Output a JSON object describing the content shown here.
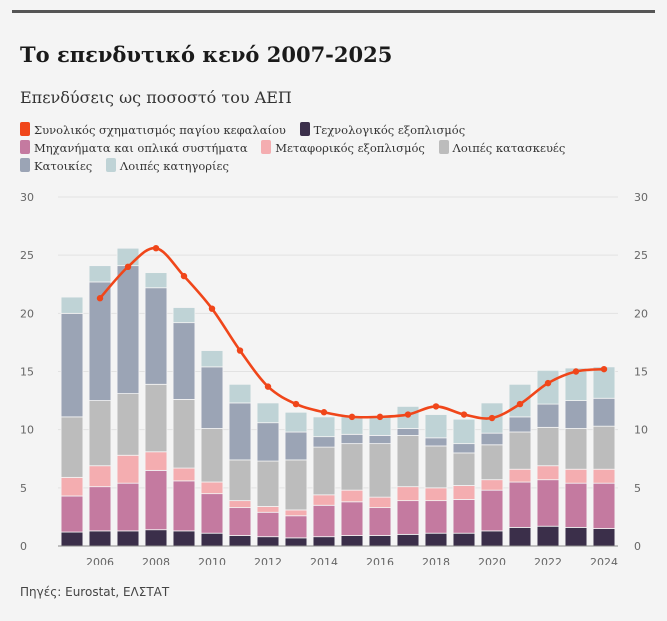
{
  "header": {
    "title": "Το επενδυτικό κενό 2007-2025",
    "subtitle": "Επενδύσεις ως ποσοστό του ΑΕΠ"
  },
  "legend": [
    {
      "label": "Συνολικός σχηματισμός παγίου κεφαλαίου",
      "color": "#f0461a"
    },
    {
      "label": "Τεχνολογικός εξοπλισμός",
      "color": "#3b2f4a"
    },
    {
      "label": "Μηχανήματα και οπλικά συστήματα",
      "color": "#c47aa0"
    },
    {
      "label": "Μεταφορικός εξοπλισμός",
      "color": "#f4adb0"
    },
    {
      "label": "Λοιπές κατασκευές",
      "color": "#bcbcbc"
    },
    {
      "label": "Κατοικίες",
      "color": "#9ba4b5"
    },
    {
      "label": "Λοιπές κατηγορίες",
      "color": "#bfd3d6"
    }
  ],
  "chart_data": {
    "type": "bar",
    "stacked": true,
    "title": "Το επενδυτικό κενό 2007-2025",
    "subtitle": "Επενδύσεις ως ποσοστό του ΑΕΠ",
    "x": [
      2005,
      2006,
      2007,
      2008,
      2009,
      2010,
      2011,
      2012,
      2013,
      2014,
      2015,
      2016,
      2017,
      2018,
      2019,
      2020,
      2021,
      2022,
      2023,
      2024
    ],
    "xticks": [
      2006,
      2008,
      2010,
      2012,
      2014,
      2016,
      2018,
      2020,
      2022,
      2024
    ],
    "ylim": [
      0,
      30
    ],
    "yticks": [
      0,
      5,
      10,
      15,
      20,
      25,
      30
    ],
    "series": [
      {
        "name": "Τεχνολογικός εξοπλισμός",
        "color": "#3b2f4a",
        "values": [
          1.2,
          1.3,
          1.3,
          1.4,
          1.3,
          1.1,
          0.9,
          0.8,
          0.7,
          0.8,
          0.9,
          0.9,
          1.0,
          1.1,
          1.1,
          1.3,
          1.6,
          1.7,
          1.6,
          1.5
        ]
      },
      {
        "name": "Μηχανήματα και οπλικά συστήματα",
        "color": "#c47aa0",
        "values": [
          3.1,
          3.8,
          4.1,
          5.1,
          4.3,
          3.4,
          2.4,
          2.1,
          1.9,
          2.7,
          2.9,
          2.4,
          2.9,
          2.8,
          2.9,
          3.5,
          3.9,
          4.0,
          3.8,
          3.9
        ]
      },
      {
        "name": "Μεταφορικός εξοπλισμός",
        "color": "#f4adb0",
        "values": [
          1.6,
          1.8,
          2.4,
          1.6,
          1.1,
          1.0,
          0.6,
          0.5,
          0.5,
          0.9,
          1.0,
          0.9,
          1.2,
          1.1,
          1.2,
          0.9,
          1.1,
          1.2,
          1.2,
          1.2
        ]
      },
      {
        "name": "Λοιπές κατασκευές",
        "color": "#bcbcbc",
        "values": [
          5.2,
          5.6,
          5.3,
          5.8,
          5.9,
          4.6,
          3.5,
          3.9,
          4.3,
          4.1,
          4.0,
          4.6,
          4.4,
          3.6,
          2.8,
          3.0,
          3.2,
          3.3,
          3.5,
          3.7
        ]
      },
      {
        "name": "Κατοικίες",
        "color": "#9ba4b5",
        "values": [
          8.9,
          10.2,
          11.0,
          8.3,
          6.6,
          5.3,
          4.9,
          3.3,
          2.4,
          0.9,
          0.8,
          0.7,
          0.6,
          0.7,
          0.8,
          1.0,
          1.3,
          2.0,
          2.4,
          2.4
        ]
      },
      {
        "name": "Λοιπές κατηγορίες",
        "color": "#bfd3d6",
        "values": [
          1.4,
          1.4,
          1.5,
          1.3,
          1.3,
          1.4,
          1.6,
          1.7,
          1.7,
          1.7,
          1.6,
          1.7,
          1.9,
          2.0,
          2.1,
          2.6,
          2.8,
          2.9,
          2.8,
          2.7
        ]
      }
    ],
    "line": {
      "name": "Συνολικός σχηματισμός παγίου κεφαλαίου",
      "color": "#f0461a",
      "x": [
        2006,
        2007,
        2008,
        2009,
        2010,
        2011,
        2012,
        2013,
        2014,
        2015,
        2016,
        2017,
        2018,
        2019,
        2020,
        2021,
        2022,
        2023,
        2024
      ],
      "values": [
        21.3,
        24.0,
        25.6,
        23.2,
        20.4,
        16.8,
        13.7,
        12.2,
        11.5,
        11.1,
        11.1,
        11.3,
        12.0,
        11.3,
        11.0,
        12.2,
        14.0,
        15.0,
        15.2
      ]
    }
  },
  "footer": {
    "source": "Πηγές: Eurostat, ΕΛΣΤΑΤ"
  }
}
